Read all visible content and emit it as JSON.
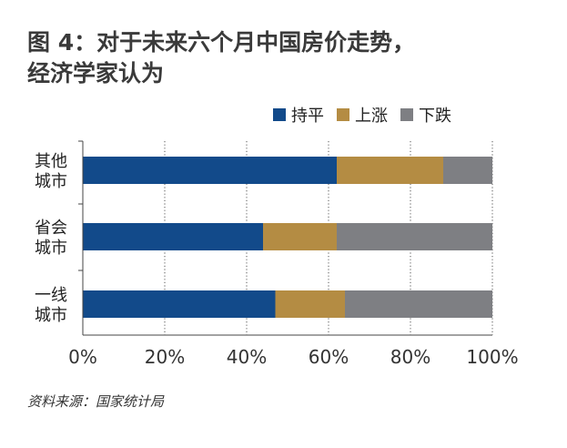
{
  "title_line1": "图 4：对于未来六个月中国房价走势，",
  "title_line2": "经济学家认为",
  "source": "资料来源：国家统计局",
  "chart_data": {
    "type": "bar",
    "orientation": "horizontal",
    "stacked": true,
    "categories": [
      [
        "其他",
        "城市"
      ],
      [
        "省会",
        "城市"
      ],
      [
        "一线",
        "城市"
      ]
    ],
    "series": [
      {
        "name": "持平",
        "values": [
          62,
          44,
          47
        ],
        "color": "#124a8a"
      },
      {
        "name": "上涨",
        "values": [
          26,
          18,
          17
        ],
        "color": "#b48c43"
      },
      {
        "name": "下跌",
        "values": [
          12,
          38,
          36
        ],
        "color": "#7e7f83"
      }
    ],
    "xlim": [
      0,
      100
    ],
    "xticks": [
      0,
      20,
      40,
      60,
      80,
      100
    ],
    "xtick_labels": [
      "0%",
      "20%",
      "40%",
      "60%",
      "80%",
      "100%"
    ],
    "grid": true,
    "legend_position": "top-right"
  }
}
